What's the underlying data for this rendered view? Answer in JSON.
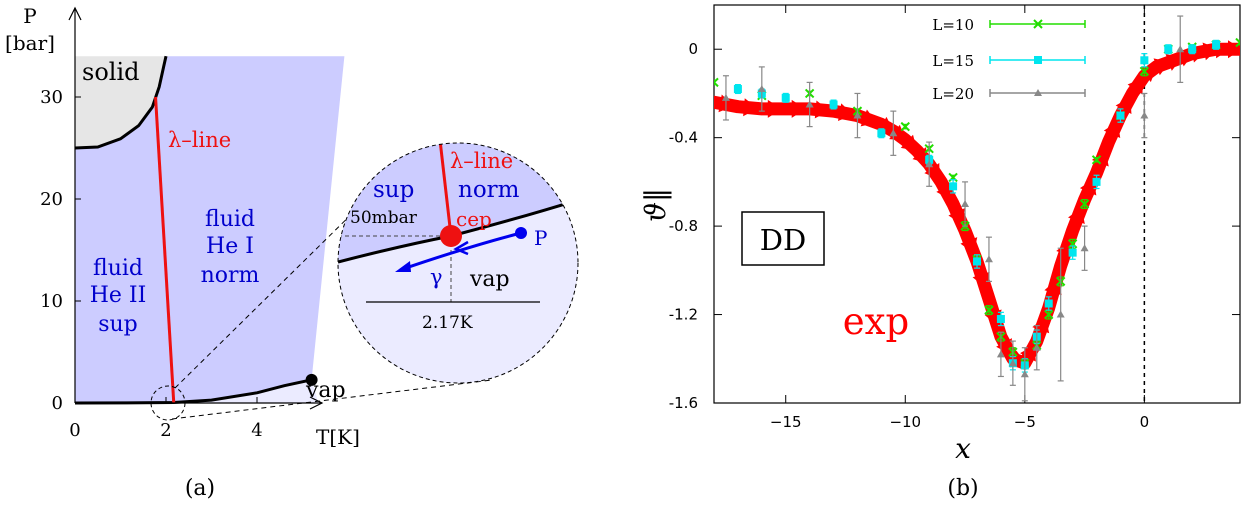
{
  "chart_data": [
    {
      "type": "diagram",
      "panel_label": "(a)",
      "ylabel_line1": "P",
      "ylabel_line2": "[bar]",
      "xlabel": "T[K]",
      "xlim": [
        0,
        5.3
      ],
      "ylim": [
        0,
        34
      ],
      "x_ticks": [
        0,
        2,
        4
      ],
      "y_ticks": [
        0,
        10,
        20,
        30
      ],
      "regions": {
        "solid": "solid",
        "superfluid": [
          "fluid",
          "He II",
          "sup"
        ],
        "normal": [
          "fluid",
          "He I",
          "norm"
        ],
        "vapor": "vap"
      },
      "lambda_label": "λ–line",
      "melting_curve": [
        [
          0.0,
          25.0
        ],
        [
          0.5,
          25.1
        ],
        [
          1.0,
          25.9
        ],
        [
          1.4,
          27.2
        ],
        [
          1.7,
          29.0
        ],
        [
          1.85,
          31.0
        ],
        [
          1.95,
          33.0
        ],
        [
          2.0,
          34.0
        ]
      ],
      "lambda_line": [
        [
          1.77,
          30.0
        ],
        [
          2.17,
          0.05
        ]
      ],
      "vapor_curve": [
        [
          0.0,
          0.0
        ],
        [
          1.5,
          0.02
        ],
        [
          2.17,
          0.05
        ],
        [
          3.0,
          0.28
        ],
        [
          4.0,
          1.0
        ],
        [
          4.6,
          1.7
        ],
        [
          5.2,
          2.27
        ]
      ],
      "critical_point": [
        5.2,
        2.27
      ],
      "inset": {
        "labels": {
          "lambda": "λ–line",
          "sup": "sup",
          "norm": "norm",
          "cep": "cep",
          "vap": "vap",
          "pressure": "50mbar",
          "temperature": "2.17K",
          "path_point": "P",
          "path_name": "γ"
        }
      }
    },
    {
      "type": "scatter",
      "panel_label": "(b)",
      "xlabel": "x",
      "ylabel": "ϑ‖",
      "xlim": [
        -18,
        4
      ],
      "ylim": [
        -1.6,
        0.2
      ],
      "x_ticks": [
        -15,
        -10,
        -5,
        0
      ],
      "y_ticks": [
        0,
        -0.4,
        -0.8,
        -1.2,
        -1.6
      ],
      "y_tick_labels": [
        "0",
        "-0.4",
        "-0.8",
        "-1.2",
        "-1.6"
      ],
      "x_tick_labels": [
        "−15",
        "−10",
        "−5",
        "0"
      ],
      "boxed_label": "DD",
      "curve_label": "exp",
      "vertical_line_x": 0,
      "colors": {
        "exp": "#ff0000",
        "L10": "#22dd00",
        "L15": "#00e5ee",
        "L20": "#888888"
      },
      "series": [
        {
          "name": "L=10",
          "marker": "cross",
          "x": [
            -18,
            -16,
            -14,
            -12,
            -10,
            -9,
            -8,
            -7.5,
            -7,
            -6.5,
            -6,
            -5.5,
            -5,
            -4.5,
            -4,
            -3.5,
            -3,
            -2.5,
            -2,
            -1,
            0,
            1,
            2,
            3,
            4
          ],
          "y": [
            -0.15,
            -0.21,
            -0.2,
            -0.28,
            -0.35,
            -0.45,
            -0.58,
            -0.8,
            -0.95,
            -1.18,
            -1.3,
            -1.37,
            -1.42,
            -1.34,
            -1.2,
            -1.05,
            -0.88,
            -0.7,
            -0.5,
            -0.3,
            -0.1,
            0.0,
            0.01,
            0.02,
            0.03
          ],
          "err": [
            0.01,
            0.01,
            0.01,
            0.01,
            0.01,
            0.01,
            0.01,
            0.02,
            0.02,
            0.02,
            0.02,
            0.02,
            0.02,
            0.02,
            0.02,
            0.02,
            0.02,
            0.02,
            0.01,
            0.01,
            0.02,
            0.01,
            0.01,
            0.01,
            0.01
          ]
        },
        {
          "name": "L=15",
          "marker": "square",
          "x": [
            -17,
            -16,
            -15,
            -13,
            -11,
            -9,
            -8,
            -7,
            -6,
            -5.5,
            -5,
            -4.5,
            -4,
            -3,
            -2,
            -1,
            0,
            1,
            2,
            3
          ],
          "y": [
            -0.18,
            -0.2,
            -0.22,
            -0.25,
            -0.38,
            -0.5,
            -0.62,
            -0.96,
            -1.22,
            -1.42,
            -1.43,
            -1.3,
            -1.15,
            -0.92,
            -0.6,
            -0.3,
            -0.05,
            0.0,
            0.0,
            0.02
          ],
          "err": [
            0.02,
            0.02,
            0.02,
            0.02,
            0.02,
            0.02,
            0.03,
            0.03,
            0.03,
            0.03,
            0.03,
            0.03,
            0.03,
            0.03,
            0.03,
            0.03,
            0.03,
            0.02,
            0.02,
            0.02
          ]
        },
        {
          "name": "L=20",
          "marker": "triangle",
          "x": [
            -17.5,
            -16,
            -14,
            -12,
            -10.5,
            -9,
            -7.5,
            -6.5,
            -6,
            -5.5,
            -5,
            -4.5,
            -3.5,
            -2.5,
            0,
            1.5
          ],
          "y": [
            -0.22,
            -0.18,
            -0.25,
            -0.3,
            -0.38,
            -0.52,
            -0.7,
            -0.95,
            -1.38,
            -1.42,
            -1.47,
            -1.35,
            -1.2,
            -0.9,
            -0.3,
            0.0
          ],
          "err": [
            0.1,
            0.1,
            0.1,
            0.1,
            0.1,
            0.1,
            0.1,
            0.1,
            0.1,
            0.1,
            0.12,
            0.1,
            0.3,
            0.1,
            0.1,
            0.15
          ]
        }
      ],
      "exp_curve": {
        "x": [
          -18,
          -17,
          -16,
          -15,
          -14,
          -13,
          -12,
          -11,
          -10.5,
          -10,
          -9.5,
          -9,
          -8.5,
          -8,
          -7.5,
          -7,
          -6.5,
          -6,
          -5.5,
          -5,
          -4.5,
          -4,
          -3.5,
          -3,
          -2.5,
          -2,
          -1.5,
          -1,
          -0.5,
          0,
          0.5,
          1,
          1.5,
          2,
          2.5,
          3,
          3.5,
          4
        ],
        "y": [
          -0.24,
          -0.26,
          -0.27,
          -0.27,
          -0.27,
          -0.28,
          -0.3,
          -0.34,
          -0.37,
          -0.41,
          -0.46,
          -0.52,
          -0.6,
          -0.7,
          -0.82,
          -0.96,
          -1.13,
          -1.3,
          -1.4,
          -1.42,
          -1.32,
          -1.17,
          -0.98,
          -0.82,
          -0.68,
          -0.56,
          -0.42,
          -0.3,
          -0.2,
          -0.12,
          -0.08,
          -0.06,
          -0.04,
          -0.02,
          -0.01,
          0.0,
          0.0,
          0.0
        ]
      }
    }
  ]
}
